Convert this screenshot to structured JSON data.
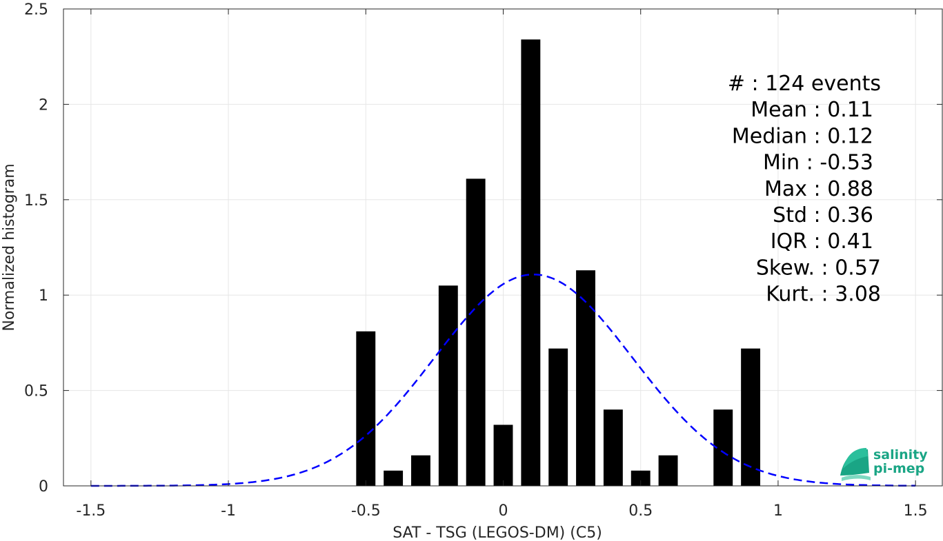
{
  "chart_data": {
    "type": "bar",
    "xlabel": "SAT - TSG (LEGOS-DM) (C5)",
    "ylabel": "Normalized histogram",
    "xlim": [
      -1.6,
      1.6
    ],
    "ylim": [
      0,
      2.5
    ],
    "xticks": [
      -1.5,
      -1,
      -0.5,
      0,
      0.5,
      1,
      1.5
    ],
    "xtick_labels": [
      "-1.5",
      "-1",
      "-0.5",
      "0",
      "0.5",
      "1",
      "1.5"
    ],
    "yticks": [
      0,
      0.5,
      1,
      1.5,
      2,
      2.5
    ],
    "ytick_labels": [
      "0",
      "0.5",
      "1",
      "1.5",
      "2",
      "2.5"
    ],
    "grid": true,
    "bar_color": "#000000",
    "bar_width": 0.07,
    "bins": [
      {
        "x": -0.5,
        "value": 0.81
      },
      {
        "x": -0.4,
        "value": 0.08
      },
      {
        "x": -0.3,
        "value": 0.16
      },
      {
        "x": -0.2,
        "value": 1.05
      },
      {
        "x": -0.1,
        "value": 1.61
      },
      {
        "x": 0.0,
        "value": 0.32
      },
      {
        "x": 0.1,
        "value": 2.34
      },
      {
        "x": 0.2,
        "value": 0.72
      },
      {
        "x": 0.3,
        "value": 1.13
      },
      {
        "x": 0.4,
        "value": 0.4
      },
      {
        "x": 0.5,
        "value": 0.08
      },
      {
        "x": 0.6,
        "value": 0.16
      },
      {
        "x": 0.7,
        "value": 0.0
      },
      {
        "x": 0.8,
        "value": 0.4
      },
      {
        "x": 0.9,
        "value": 0.72
      }
    ],
    "fit_curve": {
      "type": "gaussian",
      "mean": 0.11,
      "std": 0.36,
      "x_range": [
        -1.5,
        1.5
      ],
      "color": "#0000ff",
      "style": "dashed"
    },
    "stats": [
      {
        "label": "#  : 124 events",
        "anchor": "end"
      },
      {
        "label": "Mean : 0.11",
        "anchor": "end"
      },
      {
        "label": "Median : 0.12",
        "anchor": "end"
      },
      {
        "label": "Min : -0.53",
        "anchor": "end"
      },
      {
        "label": "Max : 0.88",
        "anchor": "end"
      },
      {
        "label": "Std : 0.36",
        "anchor": "end"
      },
      {
        "label": "IQR : 0.41",
        "anchor": "end"
      },
      {
        "label": "Skew. : 0.57",
        "anchor": "end"
      },
      {
        "label": "Kurt. : 3.08",
        "anchor": "end"
      }
    ]
  },
  "logo": {
    "line1": "salinity",
    "line2": "pi-mep",
    "color": "#1aa585"
  }
}
